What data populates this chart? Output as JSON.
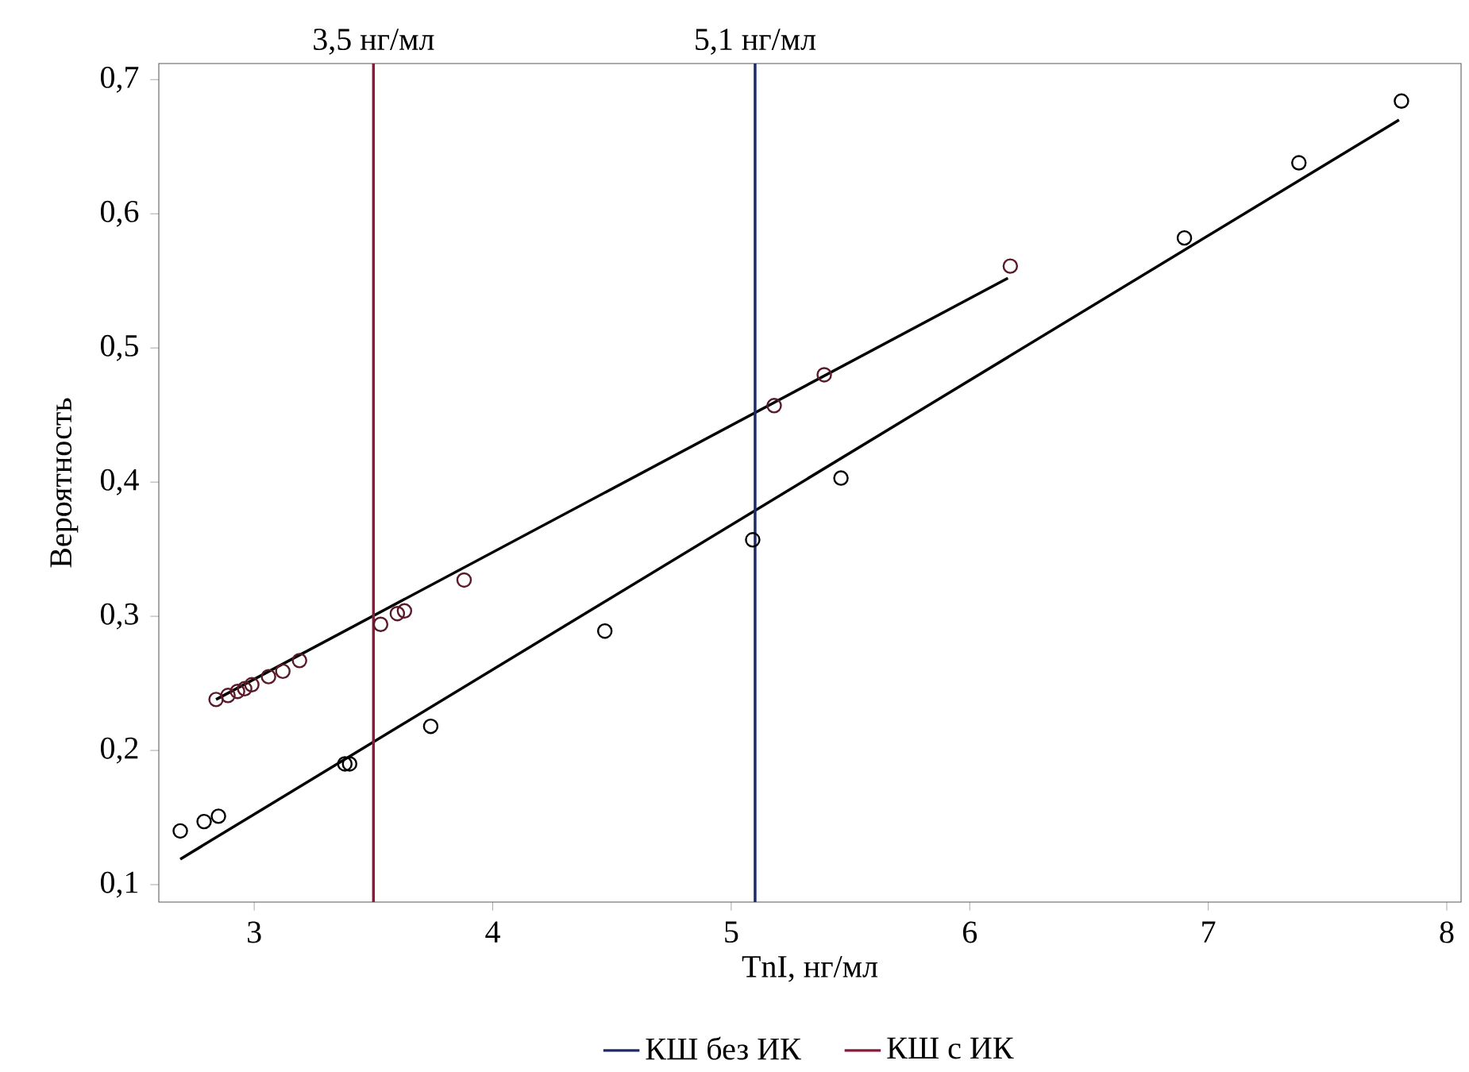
{
  "chart_data": {
    "type": "scatter",
    "xlabel": "TnI, нг/мл",
    "ylabel": "Вероятность",
    "xlim": [
      2.6,
      8.06
    ],
    "ylim": [
      0.087,
      0.712
    ],
    "xticks": [
      3,
      4,
      5,
      6,
      7,
      8
    ],
    "yticks": [
      {
        "value": 0.1,
        "label": "0,1"
      },
      {
        "value": 0.2,
        "label": "0,2"
      },
      {
        "value": 0.3,
        "label": "0,3"
      },
      {
        "value": 0.4,
        "label": "0,4"
      },
      {
        "value": 0.5,
        "label": "0,5"
      },
      {
        "value": 0.6,
        "label": "0,6"
      },
      {
        "value": 0.7,
        "label": "0,7"
      }
    ],
    "grid": false,
    "legend": "bottom",
    "series": [
      {
        "marker": "circle",
        "color": "#000000",
        "x": [
          2.69,
          2.79,
          2.85,
          3.38,
          3.4,
          3.74,
          4.47,
          5.09,
          5.46,
          6.9,
          7.38,
          7.81
        ],
        "values": [
          0.14,
          0.147,
          0.151,
          0.19,
          0.19,
          0.218,
          0.289,
          0.357,
          0.403,
          0.582,
          0.638,
          0.684
        ]
      },
      {
        "marker": "circle",
        "color": "#5a1a2a",
        "x": [
          2.84,
          2.89,
          2.93,
          2.96,
          2.99,
          3.06,
          3.12,
          3.19,
          3.53,
          3.6,
          3.63,
          3.88,
          5.18,
          5.39,
          6.17
        ],
        "values": [
          0.238,
          0.241,
          0.244,
          0.246,
          0.249,
          0.255,
          0.259,
          0.267,
          0.294,
          0.302,
          0.304,
          0.327,
          0.457,
          0.48,
          0.561
        ]
      },
      {
        "type": "line",
        "marker": "none",
        "color": "#000000",
        "x": [
          2.69,
          7.8
        ],
        "values": [
          0.119,
          0.67
        ]
      },
      {
        "type": "line",
        "marker": "none",
        "color": "#000000",
        "x": [
          2.84,
          6.16
        ],
        "values": [
          0.238,
          0.552
        ]
      },
      {
        "type": "line",
        "marker": "none",
        "name": "КШ без ИК",
        "color": "#1c2a6b",
        "x": [
          5.1,
          5.1
        ],
        "values": [
          0.087,
          0.712
        ]
      },
      {
        "type": "line",
        "marker": "none",
        "name": "КШ с ИК",
        "color": "#8b1a3a",
        "x": [
          3.5,
          3.5
        ],
        "values": [
          0.087,
          0.712
        ]
      }
    ],
    "annotations": [
      {
        "text": "3,5 нг/мл",
        "x": 3.5,
        "y": 0.712
      },
      {
        "text": "5,1 нг/мл",
        "x": 5.1,
        "y": 0.712
      }
    ]
  }
}
